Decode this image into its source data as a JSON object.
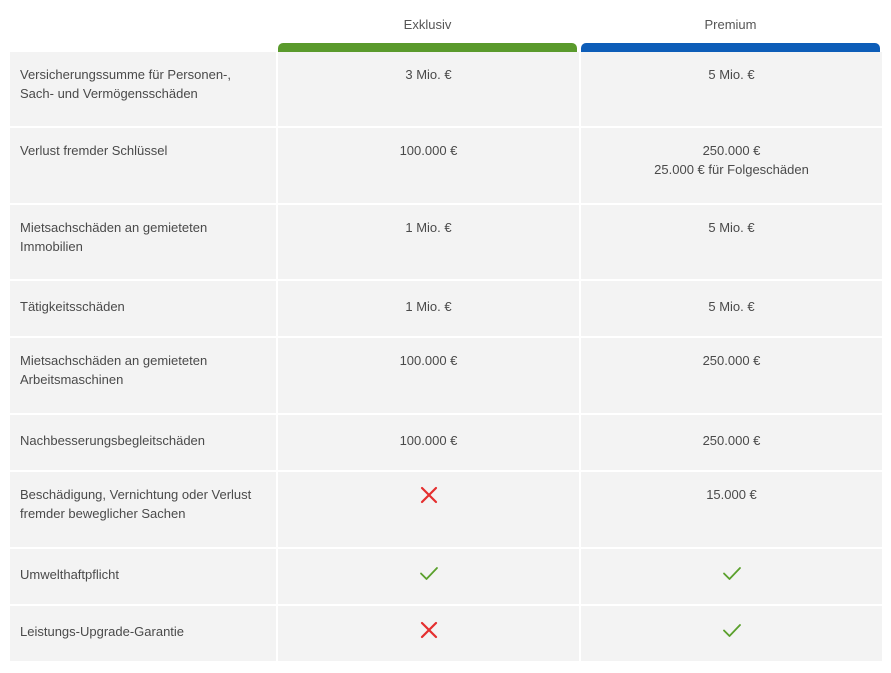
{
  "plans": [
    {
      "name": "Exklusiv",
      "color": "#5a9a2c"
    },
    {
      "name": "Premium",
      "color": "#0d5db8"
    }
  ],
  "icons": {
    "check_color": "#5aa02c",
    "cross_color": "#e52f2f"
  },
  "rows": [
    {
      "label": "Versicherungssumme für Personen-, Sach- und Vermögensschäden",
      "exklusiv": "3 Mio. €",
      "premium": "5 Mio. €",
      "premium_sub": ""
    },
    {
      "label": "Verlust fremder Schlüssel",
      "exklusiv": "100.000 €",
      "premium": "250.000 €",
      "premium_sub": "25.000 € für Folgeschäden"
    },
    {
      "label": "Mietsachschäden an gemieteten Immobilien",
      "exklusiv": "1 Mio. €",
      "premium": "5 Mio. €",
      "premium_sub": ""
    },
    {
      "label": "Tätigkeitsschäden",
      "exklusiv": "1 Mio. €",
      "premium": "5 Mio. €",
      "premium_sub": ""
    },
    {
      "label": "Mietsachschäden an gemieteten Arbeitsmaschinen",
      "exklusiv": "100.000 €",
      "premium": "250.000 €",
      "premium_sub": ""
    },
    {
      "label": "Nachbesserungsbegleitschäden",
      "exklusiv": "100.000 €",
      "premium": "250.000 €",
      "premium_sub": ""
    },
    {
      "label": "Beschädigung, Vernichtung oder Verlust fremder beweglicher Sachen",
      "exklusiv_icon": "cross-icon",
      "premium": "15.000 €",
      "premium_sub": ""
    },
    {
      "label": "Umwelthaftpflicht",
      "exklusiv_icon": "check-icon",
      "premium_icon": "check-icon"
    },
    {
      "label": "Leistungs-Upgrade-Garantie",
      "exklusiv_icon": "cross-icon",
      "premium_icon": "check-icon"
    }
  ]
}
